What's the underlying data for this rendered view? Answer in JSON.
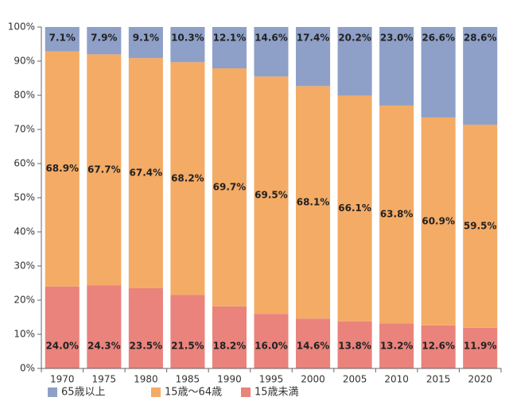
{
  "chart_data": {
    "type": "bar",
    "stacked": true,
    "percent": true,
    "categories": [
      "1970",
      "1975",
      "1980",
      "1985",
      "1990",
      "1995",
      "2000",
      "2005",
      "2010",
      "2015",
      "2020"
    ],
    "series": [
      {
        "name": "15歳未満",
        "values": [
          24.0,
          24.3,
          23.5,
          21.5,
          18.2,
          16.0,
          14.6,
          13.8,
          13.2,
          12.6,
          11.9
        ],
        "labels": [
          "24.0%",
          "24.3%",
          "23.5%",
          "21.5%",
          "18.2%",
          "16.0%",
          "14.6%",
          "13.8%",
          "13.2%",
          "12.6%",
          "11.9%"
        ],
        "color": "#e9837c"
      },
      {
        "name": "15歳～64歳",
        "values": [
          68.9,
          67.7,
          67.4,
          68.2,
          69.7,
          69.5,
          68.1,
          66.1,
          63.8,
          60.9,
          59.5
        ],
        "labels": [
          "68.9%",
          "67.7%",
          "67.4%",
          "68.2%",
          "69.7%",
          "69.5%",
          "68.1%",
          "66.1%",
          "63.8%",
          "60.9%",
          "59.5%"
        ],
        "color": "#f4ab66"
      },
      {
        "name": "65歳以上",
        "values": [
          7.1,
          7.9,
          9.1,
          10.3,
          12.1,
          14.6,
          17.4,
          20.2,
          23.0,
          26.6,
          28.6
        ],
        "labels": [
          "7.1%",
          "7.9%",
          "9.1%",
          "10.3%",
          "12.1%",
          "14.6%",
          "17.4%",
          "20.2%",
          "23.0%",
          "26.6%",
          "28.6%"
        ],
        "color": "#8ea0c7"
      }
    ],
    "ylim": [
      0,
      100
    ],
    "yticks": [
      "0%",
      "10%",
      "20%",
      "30%",
      "40%",
      "50%",
      "60%",
      "70%",
      "80%",
      "90%",
      "100%"
    ],
    "legend": {
      "position": "bottom-left",
      "order": [
        "65歳以上",
        "15歳～64歳",
        "15歳未満"
      ]
    },
    "title": "",
    "xlabel": "",
    "ylabel": ""
  }
}
